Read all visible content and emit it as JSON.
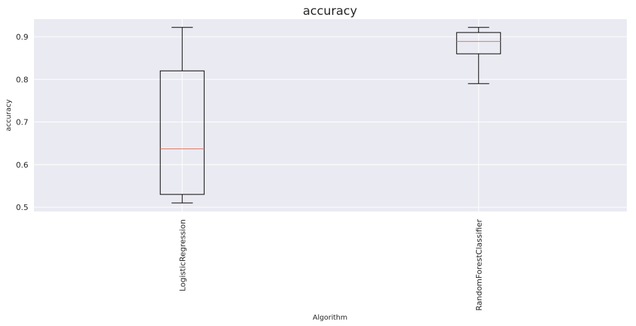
{
  "chart_data": {
    "type": "box",
    "title": "accuracy",
    "xlabel": "Algorithm",
    "ylabel": "accuracy",
    "ylim": [
      0.49,
      0.94
    ],
    "yticks": [
      0.5,
      0.6,
      0.7,
      0.8,
      0.9
    ],
    "ytick_labels": [
      "0.5",
      "0.6",
      "0.7",
      "0.8",
      "0.9"
    ],
    "categories": [
      "LogisticRegression",
      "RandomForestClassifier"
    ],
    "boxes": [
      {
        "name": "LogisticRegression",
        "whisker_low": 0.51,
        "q1": 0.53,
        "median": 0.637,
        "q3": 0.82,
        "whisker_high": 0.922
      },
      {
        "name": "RandomForestClassifier",
        "whisker_low": 0.79,
        "q1": 0.86,
        "median": 0.889,
        "q3": 0.91,
        "whisker_high": 0.922
      }
    ],
    "grid": true,
    "colors": {
      "background": "#eaeaf2",
      "grid": "#ffffff",
      "box": "#000000",
      "median": "#e0765a"
    }
  }
}
